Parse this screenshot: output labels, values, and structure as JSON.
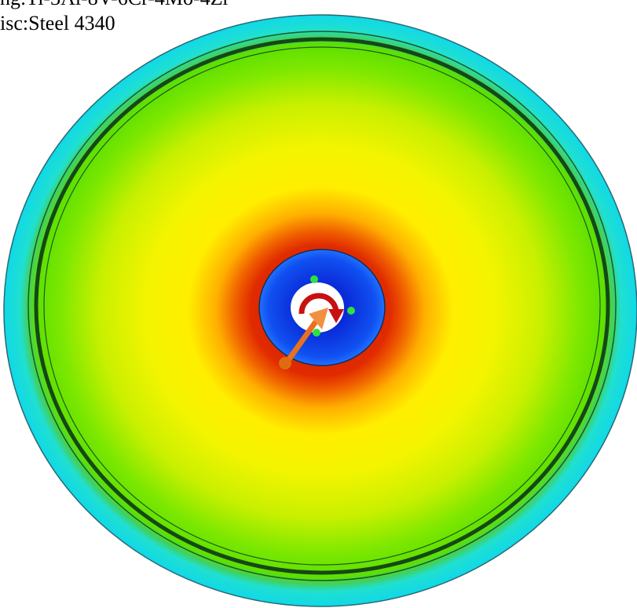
{
  "labels": {
    "ring": "ng:Ti-3Al-8V-6Cr-4Mo-4Zr",
    "disc": "isc:Steel 4340"
  }
}
